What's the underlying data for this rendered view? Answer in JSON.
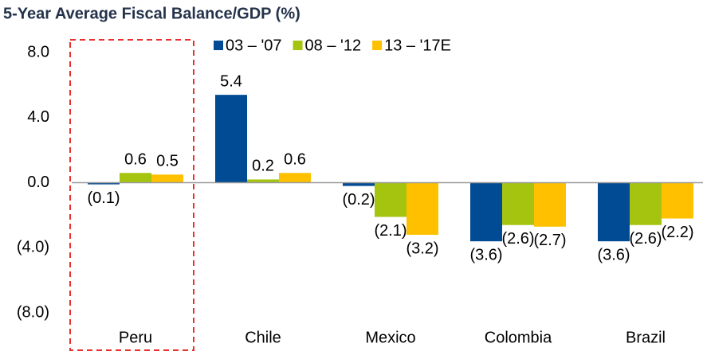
{
  "chart_data": {
    "type": "bar",
    "title": "5-Year Average Fiscal Balance/GDP (%)",
    "categories": [
      "Peru",
      "Chile",
      "Mexico",
      "Colombia",
      "Brazil"
    ],
    "series": [
      {
        "name": "03 – '07",
        "color": "#004b93",
        "values": [
          -0.1,
          5.4,
          -0.2,
          -3.6,
          -3.6
        ],
        "value_labels": [
          "(0.1)",
          "5.4",
          "(0.2)",
          "(3.6)",
          "(3.6)"
        ]
      },
      {
        "name": "08 – '12",
        "color": "#a5c40f",
        "values": [
          0.6,
          0.2,
          -2.1,
          -2.6,
          -2.6
        ],
        "value_labels": [
          "0.6",
          "0.2",
          "(2.1)",
          "(2.6)",
          "(2.6)"
        ]
      },
      {
        "name": "13 – '17E",
        "color": "#ffc000",
        "values": [
          0.5,
          0.6,
          -3.2,
          -2.7,
          -2.2
        ],
        "value_labels": [
          "0.5",
          "0.6",
          "(3.2)",
          "(2.7)",
          "(2.2)"
        ]
      }
    ],
    "ylim": [
      -10,
      8
    ],
    "yticks": [
      {
        "value": 8,
        "label": "8.0"
      },
      {
        "value": 4,
        "label": "4.0"
      },
      {
        "value": 0,
        "label": "0.0"
      },
      {
        "value": -4,
        "label": "(4.0)"
      },
      {
        "value": -8,
        "label": "(8.0)"
      }
    ],
    "grid": false,
    "legend": "top"
  }
}
